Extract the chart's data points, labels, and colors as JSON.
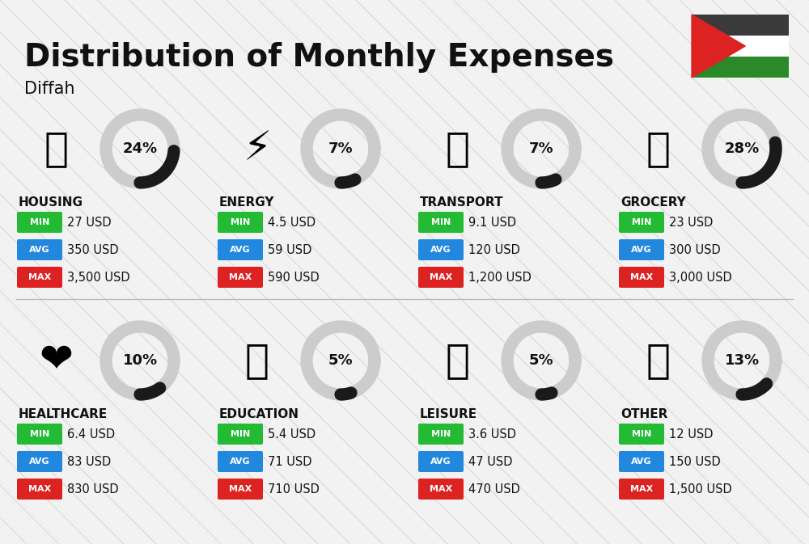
{
  "title": "Distribution of Monthly Expenses",
  "subtitle": "Diffah",
  "background_color": "#f2f2f2",
  "categories": [
    {
      "name": "HOUSING",
      "pct": 24,
      "icon": "🏢",
      "min_val": "27 USD",
      "avg_val": "350 USD",
      "max_val": "3,500 USD",
      "col": 0,
      "row": 0
    },
    {
      "name": "ENERGY",
      "pct": 7,
      "icon": "⚡",
      "min_val": "4.5 USD",
      "avg_val": "59 USD",
      "max_val": "590 USD",
      "col": 1,
      "row": 0
    },
    {
      "name": "TRANSPORT",
      "pct": 7,
      "icon": "🚌",
      "min_val": "9.1 USD",
      "avg_val": "120 USD",
      "max_val": "1,200 USD",
      "col": 2,
      "row": 0
    },
    {
      "name": "GROCERY",
      "pct": 28,
      "icon": "🛒",
      "min_val": "23 USD",
      "avg_val": "300 USD",
      "max_val": "3,000 USD",
      "col": 3,
      "row": 0
    },
    {
      "name": "HEALTHCARE",
      "pct": 10,
      "icon": "❤️",
      "min_val": "6.4 USD",
      "avg_val": "83 USD",
      "max_val": "830 USD",
      "col": 0,
      "row": 1
    },
    {
      "name": "EDUCATION",
      "pct": 5,
      "icon": "🎓",
      "min_val": "5.4 USD",
      "avg_val": "71 USD",
      "max_val": "710 USD",
      "col": 1,
      "row": 1
    },
    {
      "name": "LEISURE",
      "pct": 5,
      "icon": "🛍️",
      "min_val": "3.6 USD",
      "avg_val": "47 USD",
      "max_val": "470 USD",
      "col": 2,
      "row": 1
    },
    {
      "name": "OTHER",
      "pct": 13,
      "icon": "💰",
      "min_val": "12 USD",
      "avg_val": "150 USD",
      "max_val": "1,500 USD",
      "col": 3,
      "row": 1
    }
  ],
  "min_color": "#22bb33",
  "avg_color": "#2288dd",
  "max_color": "#dd2222",
  "text_color": "#111111",
  "arc_fg_color": "#1a1a1a",
  "arc_bg_color": "#cccccc",
  "flag_colors": [
    "#3d3d3d",
    "#ffffff",
    "#2a8a2a"
  ],
  "flag_triangle": "#dd2222",
  "diag_line_color": "#c8c8c8"
}
